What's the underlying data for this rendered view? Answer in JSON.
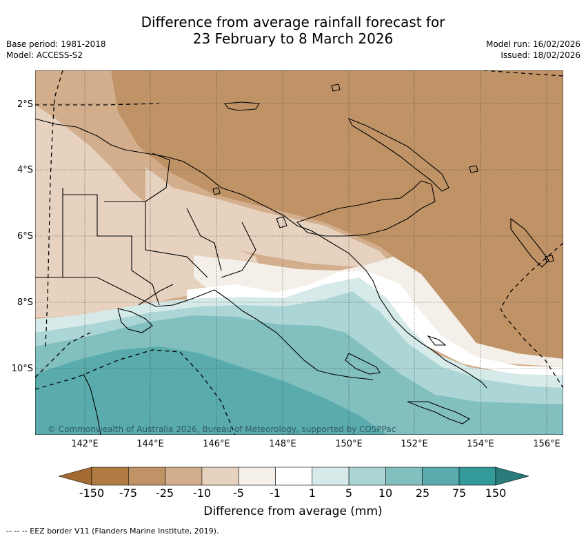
{
  "header": {
    "title_line1": "Difference from average rainfall forecast for",
    "title_line2": "23 February to 8 March 2026",
    "base_period": "Base period: 1981-2018",
    "model": "Model: ACCESS-S2",
    "model_run": "Model run: 16/02/2026",
    "issued": "Issued: 18/02/2026"
  },
  "map": {
    "lat_labels": [
      "2°S",
      "4°S",
      "6°S",
      "8°S",
      "10°S"
    ],
    "lon_labels": [
      "142°E",
      "144°E",
      "146°E",
      "148°E",
      "150°E",
      "152°E",
      "154°E",
      "156°E"
    ],
    "copyright": "© Commonwealth of Australia 2026, Bureau of Meteorology, supported by COSPPac"
  },
  "legend": {
    "ticks": [
      "-150",
      "-75",
      "-25",
      "-10",
      "-5",
      "-1",
      "1",
      "5",
      "10",
      "25",
      "75",
      "150"
    ],
    "colors": [
      "#a36b32",
      "#b07a43",
      "#c09366",
      "#d3ae8c",
      "#e6d2bf",
      "#f4efe8",
      "#ffffff",
      "#d6eaea",
      "#acd5d5",
      "#82bfbf",
      "#5aabab",
      "#339999",
      "#2a7b7b"
    ],
    "title": "Difference from average (mm)"
  },
  "footer": {
    "eez_note": "--  --  -- EEZ border V11 (Flanders Marine Institute, 2019)."
  }
}
